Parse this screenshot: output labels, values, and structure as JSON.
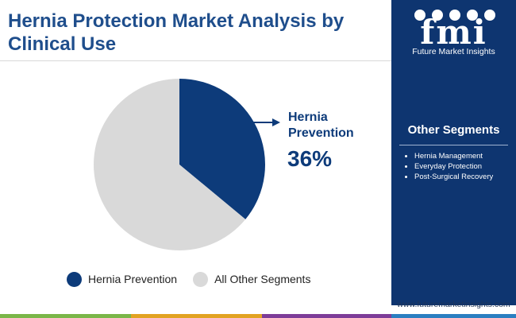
{
  "title": "Hernia Protection Market Analysis by Clinical Use",
  "chart_data": {
    "type": "pie",
    "slices": [
      {
        "label": "Hernia Prevention",
        "value": 36,
        "color": "#0d3b7a"
      },
      {
        "label": "All Other Segments",
        "value": 64,
        "color": "#d9d9d9"
      }
    ]
  },
  "callout": {
    "label": "Hernia Prevention",
    "value": "36%"
  },
  "legend": [
    "Hernia Prevention",
    "All Other Segments"
  ],
  "sidebar": {
    "logo_text": "fmi",
    "logo_subtitle": "Future Market Insights",
    "segments_title": "Other Segments",
    "segments": [
      "Hernia Management",
      "Everyday Protection",
      "Post-Surgical Recovery"
    ]
  },
  "footer_url": "www.futuremarketinsights.com",
  "colors": {
    "primary": "#0d3b7a",
    "secondary": "#d9d9d9",
    "sidebar": "#0e3570",
    "footer": [
      "#7ab648",
      "#e2a322",
      "#7d3c98",
      "#2a7fc1"
    ]
  }
}
